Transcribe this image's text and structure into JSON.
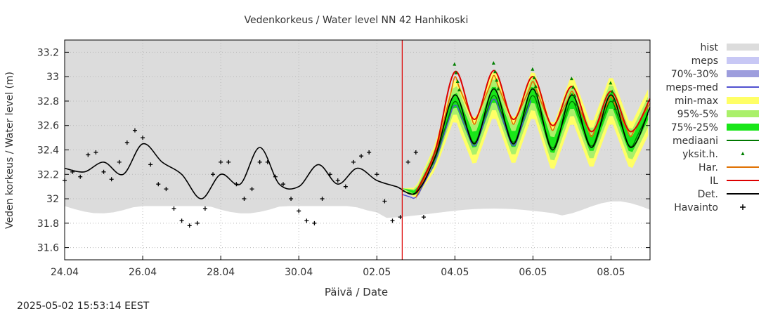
{
  "chart_data": {
    "type": "line",
    "title": "Vedenkorkeus / Water level   NN 42 Hanhikoski",
    "xlabel": "Päivä / Date",
    "ylabel": "Veden korkeus / Water level (m)",
    "x_tick_labels": [
      "24.04",
      "26.04",
      "28.04",
      "30.04",
      "02.05",
      "04.05",
      "06.05",
      "08.05"
    ],
    "x_range": [
      "2025-04-24",
      "2025-05-09"
    ],
    "y_range": [
      31.5,
      33.3
    ],
    "y_ticks": [
      31.6,
      31.8,
      32.0,
      32.2,
      32.4,
      32.6,
      32.8,
      33.0,
      33.2
    ],
    "y_tick_labels": [
      "31.6",
      "31.8",
      "32",
      "32.2",
      "32.4",
      "32.6",
      "32.8",
      "33",
      "33.2"
    ],
    "grid": true,
    "legend_position": "right",
    "forecast_start": "2025-05-02",
    "legend": [
      {
        "label": "hist",
        "color": "#dcdcdc",
        "style": "box"
      },
      {
        "label": "meps",
        "color": "#c8c8f5",
        "style": "box"
      },
      {
        "label": "70%-30%",
        "color": "#9d9ddd",
        "style": "box"
      },
      {
        "label": "meps-med",
        "color": "#5050d0",
        "style": "line"
      },
      {
        "label": "min-max",
        "color": "#ffff66",
        "style": "box"
      },
      {
        "label": "95%-5%",
        "color": "#aaf06a",
        "style": "box"
      },
      {
        "label": "75%-25%",
        "color": "#19e619",
        "style": "box"
      },
      {
        "label": "mediaani",
        "color": "#007700",
        "style": "line"
      },
      {
        "label": "yksit.h.",
        "color": "#008000",
        "style": "triangle"
      },
      {
        "label": "Har.",
        "color": "#e07000",
        "style": "line"
      },
      {
        "label": "IL",
        "color": "#dd0000",
        "style": "line"
      },
      {
        "label": "Det.",
        "color": "#000000",
        "style": "line"
      },
      {
        "label": "Havainto",
        "color": "#000000",
        "style": "plus"
      }
    ],
    "series": [
      {
        "name": "Havainto",
        "x": [
          0.0,
          0.2,
          0.4,
          0.6,
          0.8,
          1.0,
          1.2,
          1.4,
          1.6,
          1.8,
          2.0,
          2.2,
          2.4,
          2.6,
          2.8,
          3.0,
          3.2,
          3.4,
          3.6,
          3.8,
          4.0,
          4.2,
          4.4,
          4.6,
          4.8,
          5.0,
          5.2,
          5.4,
          5.6,
          5.8,
          6.0,
          6.2,
          6.4,
          6.6,
          6.8,
          7.0,
          7.2,
          7.4,
          7.6,
          7.8,
          8.0,
          8.2,
          8.4,
          8.6,
          8.8,
          9.0,
          9.2
        ],
        "y": [
          32.15,
          32.22,
          32.18,
          32.36,
          32.38,
          32.22,
          32.16,
          32.3,
          32.46,
          32.56,
          32.5,
          32.28,
          32.12,
          32.08,
          31.92,
          31.82,
          31.78,
          31.8,
          31.92,
          32.2,
          32.3,
          32.3,
          32.12,
          32.0,
          32.08,
          32.3,
          32.3,
          32.18,
          32.12,
          32.0,
          31.9,
          31.82,
          31.8,
          32.0,
          32.2,
          32.15,
          32.1,
          32.3,
          32.35,
          32.38,
          32.2,
          31.98,
          31.82,
          31.85,
          32.3,
          32.38,
          31.85
        ]
      },
      {
        "name": "Det.",
        "x": [
          0.0,
          0.5,
          1.0,
          1.5,
          2.0,
          2.5,
          3.0,
          3.5,
          4.0,
          4.5,
          5.0,
          5.5,
          6.0,
          6.5,
          7.0,
          7.5,
          8.0,
          8.5,
          9.0,
          9.5,
          10.0,
          10.5,
          11.0,
          11.5,
          12.0,
          12.5,
          13.0,
          13.5,
          14.0,
          14.5,
          15.0
        ],
        "y": [
          32.25,
          32.22,
          32.3,
          32.2,
          32.45,
          32.3,
          32.2,
          32.0,
          32.2,
          32.12,
          32.42,
          32.12,
          32.1,
          32.28,
          32.12,
          32.25,
          32.15,
          32.1,
          32.05,
          32.35,
          32.85,
          32.45,
          32.9,
          32.45,
          32.9,
          32.4,
          32.85,
          32.42,
          32.85,
          32.42,
          32.75
        ]
      },
      {
        "name": "IL",
        "x": [
          9.0,
          9.5,
          10.0,
          10.5,
          11.0,
          11.5,
          12.0,
          12.5,
          13.0,
          13.5,
          14.0,
          14.5,
          15.0
        ],
        "y": [
          32.05,
          32.4,
          33.04,
          32.65,
          33.05,
          32.65,
          33.0,
          32.6,
          32.92,
          32.55,
          32.88,
          32.55,
          32.82
        ]
      }
    ]
  },
  "footer": {
    "timestamp": "2025-05-02 15:53:14 EEST"
  }
}
